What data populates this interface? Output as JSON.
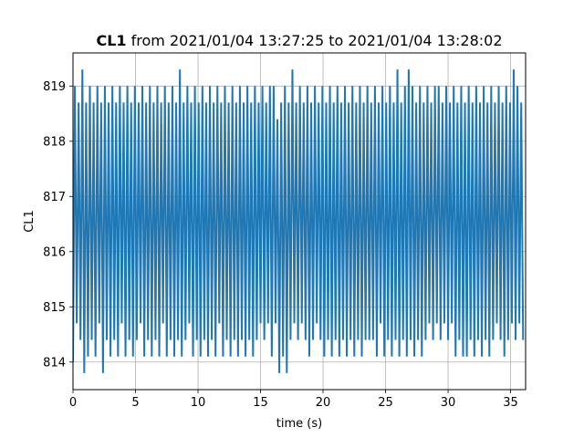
{
  "chart_data": {
    "type": "line",
    "title": {
      "bold": "CL1",
      "rest": " from 2021/01/04 13:27:25 to 2021/01/04 13:28:02"
    },
    "xlabel": "time (s)",
    "ylabel": "CL1",
    "xlim": [
      0,
      36.2
    ],
    "ylim": [
      813.5,
      819.6
    ],
    "xticks": [
      0,
      5,
      10,
      15,
      20,
      25,
      30,
      35
    ],
    "yticks": [
      814,
      815,
      816,
      817,
      818,
      819
    ],
    "grid": true,
    "series_color": "#1f77b4",
    "series": [
      {
        "x": [
          0.0,
          0.15,
          0.3,
          0.45,
          0.6,
          0.75,
          0.9,
          1.05,
          1.2,
          1.35,
          1.5,
          1.65,
          1.8,
          1.95,
          2.1,
          2.25,
          2.4,
          2.55,
          2.7,
          2.85,
          3.0,
          3.15,
          3.3,
          3.45,
          3.6,
          3.75,
          3.9,
          4.05,
          4.2,
          4.35,
          4.5,
          4.65,
          4.8,
          4.95,
          5.1,
          5.25,
          5.4,
          5.55,
          5.7,
          5.85,
          6.0,
          6.15,
          6.3,
          6.45,
          6.6,
          6.75,
          6.9,
          7.05,
          7.2,
          7.35,
          7.5,
          7.65,
          7.8,
          7.95,
          8.1,
          8.25,
          8.4,
          8.55,
          8.7,
          8.85,
          9.0,
          9.15,
          9.3,
          9.45,
          9.6,
          9.75,
          9.9,
          10.05,
          10.2,
          10.35,
          10.5,
          10.65,
          10.8,
          10.95,
          11.1,
          11.25,
          11.4,
          11.55,
          11.7,
          11.85,
          12.0,
          12.15,
          12.3,
          12.45,
          12.6,
          12.75,
          12.9,
          13.05,
          13.2,
          13.35,
          13.5,
          13.65,
          13.8,
          13.95,
          14.1,
          14.25,
          14.4,
          14.55,
          14.7,
          14.85,
          15.0,
          15.15,
          15.3,
          15.45,
          15.6,
          15.75,
          15.9,
          16.05,
          16.2,
          16.35,
          16.5,
          16.65,
          16.8,
          16.95,
          17.1,
          17.25,
          17.4,
          17.55,
          17.7,
          17.85,
          18.0,
          18.15,
          18.3,
          18.45,
          18.6,
          18.75,
          18.9,
          19.05,
          19.2,
          19.35,
          19.5,
          19.65,
          19.8,
          19.95,
          20.1,
          20.25,
          20.4,
          20.55,
          20.7,
          20.85,
          21.0,
          21.15,
          21.3,
          21.45,
          21.6,
          21.75,
          21.9,
          22.05,
          22.2,
          22.35,
          22.5,
          22.65,
          22.8,
          22.95,
          23.1,
          23.25,
          23.4,
          23.55,
          23.7,
          23.85,
          24.0,
          24.15,
          24.3,
          24.45,
          24.6,
          24.75,
          24.9,
          25.05,
          25.2,
          25.35,
          25.5,
          25.65,
          25.8,
          25.95,
          26.1,
          26.25,
          26.4,
          26.55,
          26.7,
          26.85,
          27.0,
          27.15,
          27.3,
          27.45,
          27.6,
          27.75,
          27.9,
          28.05,
          28.2,
          28.35,
          28.5,
          28.65,
          28.8,
          28.95,
          29.1,
          29.25,
          29.4,
          29.55,
          29.7,
          29.85,
          30.0,
          30.15,
          30.3,
          30.45,
          30.6,
          30.75,
          30.9,
          31.05,
          31.2,
          31.35,
          31.5,
          31.65,
          31.8,
          31.95,
          32.1,
          32.25,
          32.4,
          32.55,
          32.7,
          32.85,
          33.0,
          33.15,
          33.3,
          33.45,
          33.6,
          33.75,
          33.9,
          34.05,
          34.2,
          34.35,
          34.5,
          34.65,
          34.8,
          34.95,
          35.1,
          35.25,
          35.4,
          35.55,
          35.7,
          35.85,
          36.0
        ],
        "y": [
          814.0,
          819.0,
          814.7,
          818.7,
          814.4,
          819.3,
          813.8,
          818.7,
          814.1,
          819.0,
          814.4,
          818.7,
          814.1,
          819.0,
          814.7,
          818.7,
          813.8,
          819.0,
          814.4,
          818.7,
          814.1,
          819.0,
          814.4,
          818.7,
          814.1,
          819.0,
          814.7,
          818.7,
          814.1,
          819.0,
          814.4,
          818.7,
          814.1,
          819.0,
          814.4,
          818.7,
          814.7,
          819.0,
          814.1,
          818.7,
          814.4,
          819.0,
          814.1,
          818.7,
          814.4,
          819.0,
          814.1,
          818.7,
          814.7,
          819.0,
          814.1,
          818.7,
          814.4,
          819.0,
          814.1,
          818.7,
          814.4,
          819.3,
          814.1,
          818.7,
          814.4,
          819.0,
          814.7,
          818.7,
          814.1,
          819.0,
          814.4,
          818.7,
          814.1,
          819.0,
          814.4,
          818.7,
          814.1,
          819.0,
          814.4,
          818.7,
          814.1,
          819.0,
          814.7,
          818.7,
          814.1,
          819.0,
          814.4,
          818.7,
          814.1,
          819.0,
          814.4,
          818.7,
          814.1,
          819.0,
          814.4,
          818.7,
          814.1,
          819.0,
          814.4,
          818.7,
          814.1,
          819.0,
          814.4,
          818.7,
          814.7,
          819.0,
          814.4,
          818.7,
          814.7,
          819.0,
          814.1,
          819.0,
          814.7,
          818.4,
          813.8,
          818.7,
          814.1,
          819.0,
          813.8,
          818.7,
          814.4,
          819.3,
          814.7,
          818.7,
          814.4,
          819.0,
          814.7,
          818.7,
          814.4,
          819.0,
          814.1,
          818.7,
          814.4,
          819.0,
          814.7,
          818.7,
          814.4,
          819.0,
          814.1,
          818.7,
          814.4,
          819.0,
          814.1,
          818.7,
          814.4,
          819.0,
          814.1,
          818.7,
          814.4,
          819.0,
          814.1,
          818.7,
          814.4,
          819.0,
          814.1,
          818.7,
          814.4,
          819.0,
          814.1,
          818.7,
          814.4,
          819.0,
          814.4,
          818.7,
          814.4,
          819.0,
          814.1,
          818.7,
          814.7,
          819.0,
          814.1,
          818.7,
          814.4,
          819.0,
          814.1,
          818.7,
          814.4,
          819.3,
          814.1,
          818.7,
          814.4,
          819.0,
          814.1,
          819.3,
          814.4,
          819.0,
          814.1,
          818.7,
          814.4,
          819.0,
          814.1,
          818.7,
          814.4,
          819.0,
          814.7,
          818.7,
          814.4,
          819.0,
          814.7,
          819.0,
          814.4,
          818.7,
          814.7,
          819.0,
          814.4,
          818.7,
          814.7,
          819.0,
          814.1,
          818.7,
          814.4,
          819.0,
          814.1,
          818.7,
          814.1,
          819.0,
          814.4,
          818.7,
          814.1,
          819.0,
          814.4,
          818.7,
          814.1,
          819.0,
          814.4,
          818.7,
          814.1,
          819.0,
          814.4,
          818.7,
          814.7,
          819.0,
          814.4,
          818.7,
          814.1,
          819.0,
          814.4,
          818.7,
          814.7,
          819.3,
          814.4,
          819.0,
          814.7,
          818.7,
          814.4
        ]
      }
    ]
  }
}
